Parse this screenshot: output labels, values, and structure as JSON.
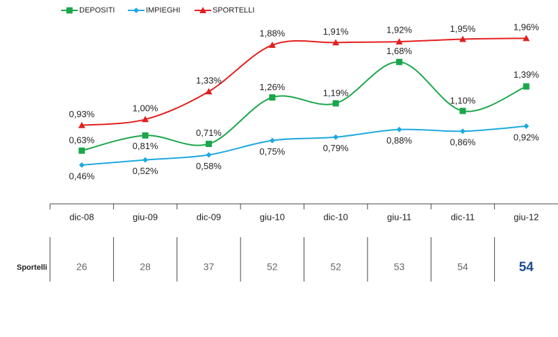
{
  "chart_data": {
    "type": "line",
    "categories": [
      "dic-08",
      "giu-09",
      "dic-09",
      "giu-10",
      "dic-10",
      "giu-11",
      "dic-11",
      "giu-12"
    ],
    "series": [
      {
        "name": "DEPOSITI",
        "color": "#1aa64a",
        "marker": "square",
        "values": [
          0.63,
          0.81,
          0.71,
          1.26,
          1.19,
          1.68,
          1.1,
          1.39
        ],
        "value_labels": [
          "0,63%",
          "0,81%",
          "0,71%",
          "1,26%",
          "1,19%",
          "1,68%",
          "1,10%",
          "1,39%"
        ]
      },
      {
        "name": "IMPIEGHI",
        "color": "#1ca8e0",
        "marker": "diamond",
        "values": [
          0.46,
          0.52,
          0.58,
          0.75,
          0.79,
          0.88,
          0.86,
          0.92
        ],
        "value_labels": [
          "0,46%",
          "0,52%",
          "0,58%",
          "0,75%",
          "0,79%",
          "0,88%",
          "0,86%",
          "0,92%"
        ]
      },
      {
        "name": "SPORTELLI",
        "color": "#e31e1e",
        "marker": "triangle",
        "values": [
          0.93,
          1.0,
          1.33,
          1.88,
          1.91,
          1.92,
          1.95,
          1.96
        ],
        "value_labels": [
          "0,93%",
          "1,00%",
          "1,33%",
          "1,88%",
          "1,91%",
          "1,92%",
          "1,95%",
          "1,96%"
        ]
      }
    ],
    "ylim": [
      0,
      2.2
    ],
    "legend": "top-left",
    "table": {
      "label": "Sportelli",
      "values": [
        26,
        28,
        37,
        52,
        52,
        53,
        54,
        54
      ],
      "highlight_color": "#1f4e8c"
    }
  }
}
